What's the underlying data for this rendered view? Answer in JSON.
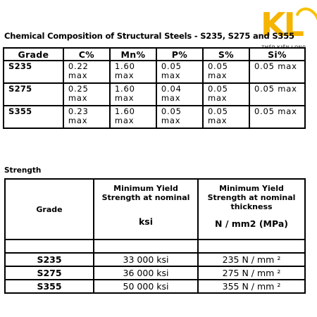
{
  "logo": {
    "mark": "KL",
    "brand": "THÉP KIÊN LONG",
    "color": "#f5b400"
  },
  "chemical": {
    "title": "Chemical Composition of Structural Steels - S235, S275 and S355",
    "headers": [
      "Grade",
      "C%",
      "Mn%",
      "P%",
      "S%",
      "Si%"
    ],
    "rows": [
      [
        "S235",
        "0.22 max",
        "1.60 max",
        "0.05 max",
        "0.05 max",
        "0.05 max"
      ],
      [
        "S275",
        "0.25 max",
        "1.60 max",
        "0.04 max",
        "0.05 max",
        "0.05 max"
      ],
      [
        "S355",
        "0.23 max",
        "1.60 max",
        "0.05 max",
        "0.05 max",
        "0.05 max"
      ]
    ]
  },
  "strength": {
    "title": "Strength",
    "grade_header": "Grade",
    "col1_header": "Minimum Yield Strength at nominal",
    "col1_unit": "ksi",
    "col2_header": "Minimum Yield Strength at nominal thickness",
    "col2_unit": "N / mm2 (MPa)",
    "rows": [
      [
        "S235",
        "33 000 ksi",
        "235 N / mm ²"
      ],
      [
        "S275",
        "36 000 ksi",
        "275 N / mm ²"
      ],
      [
        "S355",
        "50 000 ksi",
        "355 N / mm ²"
      ]
    ]
  }
}
